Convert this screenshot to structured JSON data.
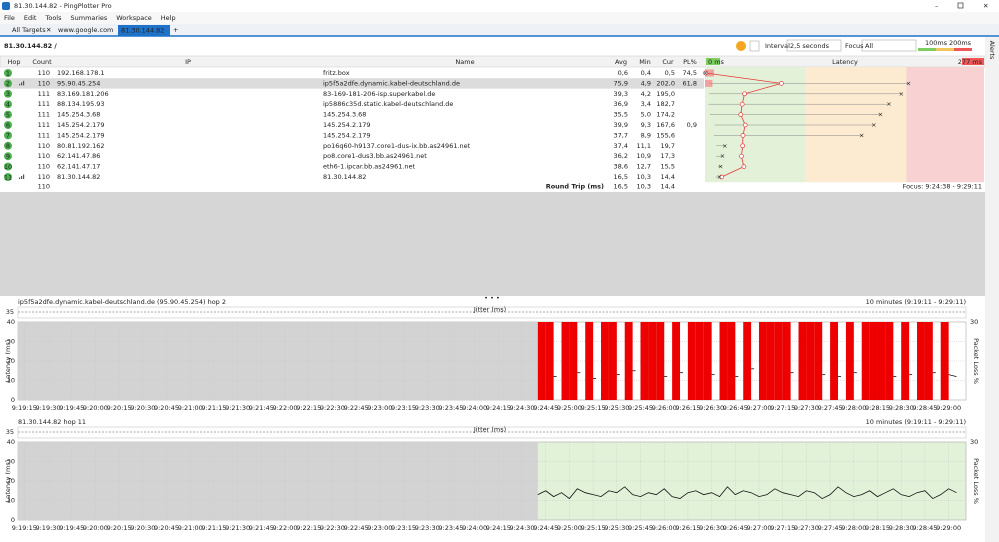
{
  "window": {
    "title": "81.30.144.82 - PingPlotter Pro"
  },
  "menu": [
    "File",
    "Edit",
    "Tools",
    "Summaries",
    "Workspace",
    "Help"
  ],
  "tabs": [
    "All Targets",
    "www.google.com",
    "81.30.144.82"
  ],
  "target": "81.30.144.82 /",
  "toolbar": {
    "interval_label": "Interval",
    "interval": "2,5 seconds",
    "focus_label": "Focus",
    "focus": "All",
    "scale": [
      "100ms",
      "200ms"
    ],
    "alerts": "Alerts"
  },
  "table": {
    "columns": [
      "Hop",
      "Count",
      "IP",
      "Name",
      "Avg",
      "Min",
      "Cur",
      "PL%"
    ],
    "latency_header": {
      "min": "0 ms",
      "title": "Latency",
      "max": "277 ms"
    },
    "rows": [
      {
        "hop": "1",
        "count": "110",
        "ip": "192.168.178.1",
        "name": "fritz.box",
        "avg": "0,6",
        "min": "0,4",
        "cur": "0,5",
        "pl": "74,5"
      },
      {
        "hop": "2",
        "count": "110",
        "ip": "95.90.45.254",
        "name": "ip5f5a2dfe.dynamic.kabel-deutschland.de",
        "avg": "75,9",
        "min": "4,9",
        "cur": "202,0",
        "pl": "61,8"
      },
      {
        "hop": "3",
        "count": "111",
        "ip": "83.169.181.206",
        "name": "83-169-181-206-isp.superkabel.de",
        "avg": "39,3",
        "min": "4,2",
        "cur": "195,0"
      },
      {
        "hop": "4",
        "count": "111",
        "ip": "88.134.195.93",
        "name": "ip5886c35d.static.kabel-deutschland.de",
        "avg": "36,9",
        "min": "3,4",
        "cur": "182,7"
      },
      {
        "hop": "5",
        "count": "111",
        "ip": "145.254.3.68",
        "name": "145.254.3.68",
        "avg": "35,5",
        "min": "5,0",
        "cur": "174,2"
      },
      {
        "hop": "6",
        "count": "111",
        "ip": "145.254.2.179",
        "name": "145.254.2.179",
        "avg": "39,9",
        "min": "9,3",
        "cur": "167,6",
        "pl": "0,9"
      },
      {
        "hop": "7",
        "count": "111",
        "ip": "145.254.2.179",
        "name": "145.254.2.179",
        "avg": "37,7",
        "min": "8,9",
        "cur": "155,6"
      },
      {
        "hop": "8",
        "count": "110",
        "ip": "80.81.192.162",
        "name": "po16q60-h9137.core1-dus-ix.bb.as24961.net",
        "avg": "37,4",
        "min": "11,1",
        "cur": "19,7"
      },
      {
        "hop": "9",
        "count": "110",
        "ip": "62.141.47.86",
        "name": "po8.core1-dus3.bb.as24961.net",
        "avg": "36,2",
        "min": "10,9",
        "cur": "17,3"
      },
      {
        "hop": "10",
        "count": "110",
        "ip": "62.141.47.17",
        "name": "eth6-1.ipcar.bb.as24961.net",
        "avg": "38,6",
        "min": "12,7",
        "cur": "15,5"
      },
      {
        "hop": "11",
        "count": "110",
        "ip": "81.30.144.82",
        "name": "81.30.144.82",
        "avg": "16,5",
        "min": "10,3",
        "cur": "14,4"
      }
    ],
    "summary": {
      "count": "110",
      "label": "Round Trip (ms)",
      "avg": "16,5",
      "min": "10,3",
      "cur": "14,4",
      "focus": "Focus: 9:24:38 - 9:29:11"
    }
  },
  "chart_data": [
    {
      "type": "line",
      "title": "ip5f5a2dfe.dynamic.kabel-deutschland.de (95.90.45.254) hop 2",
      "range_label": "10 minutes (9:19:11 - 9:29:11)",
      "y_label": "Latency (ms)",
      "y2_label": "Packet Loss %",
      "jitter_label": "Jitter (ms)",
      "jitter_scale": 35,
      "loss_color": "#ee0000",
      "xlim": [
        "9:19:11",
        "9:29:11"
      ],
      "xticks": [
        "9:19:15",
        "9:19:30",
        "9:19:45",
        "9:20:00",
        "9:20:15",
        "9:20:30",
        "9:20:45",
        "9:21:00",
        "9:21:15",
        "9:21:30",
        "9:21:45",
        "9:22:00",
        "9:22:15",
        "9:22:30",
        "9:22:45",
        "9:23:00",
        "9:23:15",
        "9:23:30",
        "9:23:45",
        "9:24:00",
        "9:24:15",
        "9:24:30",
        "9:24:45",
        "9:25:00",
        "9:25:15",
        "9:25:30",
        "9:25:45",
        "9:26:00",
        "9:26:15",
        "9:26:30",
        "9:26:45",
        "9:27:00",
        "9:27:15",
        "9:27:30",
        "9:27:45",
        "9:28:00",
        "9:28:15",
        "9:28:30",
        "9:28:45",
        "9:29:00"
      ],
      "ylim": [
        0,
        40
      ],
      "yticks": [
        0,
        10,
        20,
        30,
        40
      ],
      "y2lim": [
        0,
        30
      ],
      "y2ticks": [
        30
      ],
      "grid": true,
      "x": [
        "9:24:40",
        "9:24:45",
        "9:24:50",
        "9:24:55",
        "9:25:00",
        "9:25:05",
        "9:25:10",
        "9:25:15",
        "9:25:20",
        "9:25:25",
        "9:25:30",
        "9:25:35",
        "9:25:40",
        "9:25:45",
        "9:25:50",
        "9:25:55",
        "9:26:00",
        "9:26:05",
        "9:26:10",
        "9:26:15",
        "9:26:20",
        "9:26:25",
        "9:26:30",
        "9:26:35",
        "9:26:40",
        "9:26:45",
        "9:26:50",
        "9:26:55",
        "9:27:00",
        "9:27:05",
        "9:27:10",
        "9:27:15",
        "9:27:20",
        "9:27:25",
        "9:27:30",
        "9:27:35",
        "9:27:40",
        "9:27:45",
        "9:27:50",
        "9:27:55",
        "9:28:00",
        "9:28:05",
        "9:28:10",
        "9:28:15",
        "9:28:20",
        "9:28:25",
        "9:28:30",
        "9:28:35",
        "9:28:40",
        "9:28:45",
        "9:28:50",
        "9:28:55",
        "9:29:00",
        "9:29:05"
      ],
      "series": [
        {
          "name": "Latency",
          "color": "#111111",
          "values": [
            null,
            null,
            12,
            null,
            null,
            14,
            null,
            11,
            null,
            null,
            13,
            null,
            15,
            null,
            null,
            null,
            12,
            null,
            14,
            null,
            null,
            null,
            13,
            null,
            null,
            12,
            null,
            16,
            null,
            null,
            null,
            null,
            14,
            null,
            null,
            null,
            13,
            null,
            12,
            null,
            14,
            null,
            null,
            null,
            null,
            12,
            null,
            13,
            null,
            null,
            14,
            null,
            13,
            12
          ]
        }
      ]
    },
    {
      "type": "line",
      "title": "81.30.144.82 hop 11",
      "range_label": "10 minutes (9:19:11 - 9:29:11)",
      "y_label": "Latency (ms)",
      "y2_label": "Packet Loss %",
      "jitter_label": "Jitter (ms)",
      "jitter_scale": 35,
      "loss_color": "#ee0000",
      "shade": "#e2f2d9",
      "xlim": [
        "9:19:11",
        "9:29:11"
      ],
      "xticks": [
        "9:19:15",
        "9:19:30",
        "9:19:45",
        "9:20:00",
        "9:20:15",
        "9:20:30",
        "9:20:45",
        "9:21:00",
        "9:21:15",
        "9:21:30",
        "9:21:45",
        "9:22:00",
        "9:22:15",
        "9:22:30",
        "9:22:45",
        "9:23:00",
        "9:23:15",
        "9:23:30",
        "9:23:45",
        "9:24:00",
        "9:24:15",
        "9:24:30",
        "9:24:45",
        "9:25:00",
        "9:25:15",
        "9:25:30",
        "9:25:45",
        "9:26:00",
        "9:26:15",
        "9:26:30",
        "9:26:45",
        "9:27:00",
        "9:27:15",
        "9:27:30",
        "9:27:45",
        "9:28:00",
        "9:28:15",
        "9:28:30",
        "9:28:45",
        "9:29:00"
      ],
      "ylim": [
        0,
        40
      ],
      "yticks": [
        0,
        10,
        20,
        30,
        40
      ],
      "y2lim": [
        0,
        30
      ],
      "y2ticks": [
        30
      ],
      "grid": true,
      "x": [
        "9:24:40",
        "9:24:45",
        "9:24:50",
        "9:24:55",
        "9:25:00",
        "9:25:05",
        "9:25:10",
        "9:25:15",
        "9:25:20",
        "9:25:25",
        "9:25:30",
        "9:25:35",
        "9:25:40",
        "9:25:45",
        "9:25:50",
        "9:25:55",
        "9:26:00",
        "9:26:05",
        "9:26:10",
        "9:26:15",
        "9:26:20",
        "9:26:25",
        "9:26:30",
        "9:26:35",
        "9:26:40",
        "9:26:45",
        "9:26:50",
        "9:26:55",
        "9:27:00",
        "9:27:05",
        "9:27:10",
        "9:27:15",
        "9:27:20",
        "9:27:25",
        "9:27:30",
        "9:27:35",
        "9:27:40",
        "9:27:45",
        "9:27:50",
        "9:27:55",
        "9:28:00",
        "9:28:05",
        "9:28:10",
        "9:28:15",
        "9:28:20",
        "9:28:25",
        "9:28:30",
        "9:28:35",
        "9:28:40",
        "9:28:45",
        "9:28:50",
        "9:28:55",
        "9:29:00",
        "9:29:05"
      ],
      "series": [
        {
          "name": "Latency",
          "color": "#111111",
          "values": [
            13,
            15,
            12,
            14,
            11,
            16,
            14,
            13,
            12,
            15,
            14,
            17,
            13,
            12,
            14,
            13,
            16,
            12,
            11,
            14,
            15,
            13,
            14,
            12,
            17,
            13,
            15,
            14,
            12,
            13,
            16,
            14,
            13,
            12,
            15,
            14,
            11,
            13,
            17,
            14,
            12,
            13,
            15,
            12,
            14,
            16,
            13,
            12,
            14,
            15,
            11,
            13,
            16,
            14
          ]
        }
      ]
    }
  ]
}
